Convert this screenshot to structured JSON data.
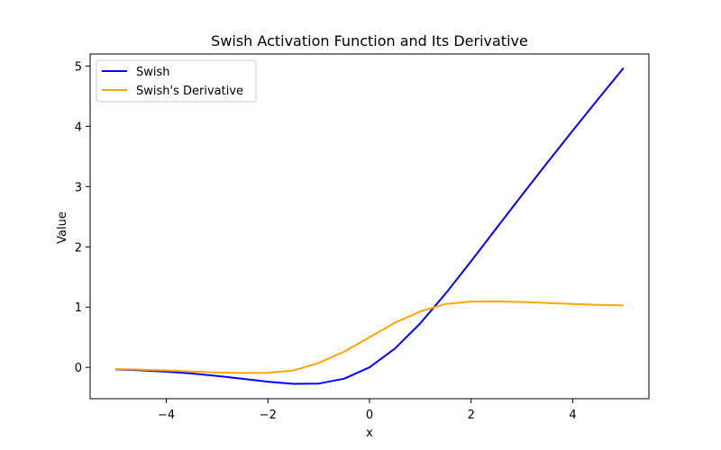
{
  "chart_data": {
    "type": "line",
    "title": "Swish Activation Function and Its Derivative",
    "xlabel": "x",
    "ylabel": "Value",
    "xlim": [
      -5.5,
      5.5
    ],
    "ylim": [
      -0.52,
      5.2
    ],
    "xticks": [
      -4,
      -2,
      0,
      2,
      4
    ],
    "xtick_labels": [
      "−4",
      "−2",
      "0",
      "2",
      "4"
    ],
    "yticks": [
      0,
      1,
      2,
      3,
      4,
      5
    ],
    "ytick_labels": [
      "0",
      "1",
      "2",
      "3",
      "4",
      "5"
    ],
    "grid": false,
    "legend_position": "top-left",
    "x": [
      -5.0,
      -4.5,
      -4.0,
      -3.5,
      -3.0,
      -2.5,
      -2.0,
      -1.5,
      -1.0,
      -0.5,
      0.0,
      0.5,
      1.0,
      1.5,
      2.0,
      2.5,
      3.0,
      3.5,
      4.0,
      4.5,
      5.0
    ],
    "series": [
      {
        "name": "Swish",
        "color": "#0000ff",
        "values": [
          -0.0335,
          -0.0493,
          -0.0719,
          -0.1026,
          -0.1423,
          -0.1896,
          -0.2384,
          -0.2736,
          -0.2689,
          -0.1888,
          0.0,
          0.3112,
          0.7311,
          1.2264,
          1.7616,
          2.3104,
          2.8577,
          3.3974,
          3.9281,
          4.4507,
          4.9665
        ]
      },
      {
        "name": "Swish's Derivative",
        "color": "#ffa500",
        "values": [
          -0.0271,
          -0.0375,
          -0.0513,
          -0.068,
          -0.0854,
          -0.0939,
          -0.0906,
          -0.0523,
          0.0723,
          0.26,
          0.5,
          0.74,
          0.9277,
          1.0523,
          1.0906,
          1.0939,
          1.0854,
          1.068,
          1.0513,
          1.0375,
          1.0271
        ]
      }
    ]
  }
}
